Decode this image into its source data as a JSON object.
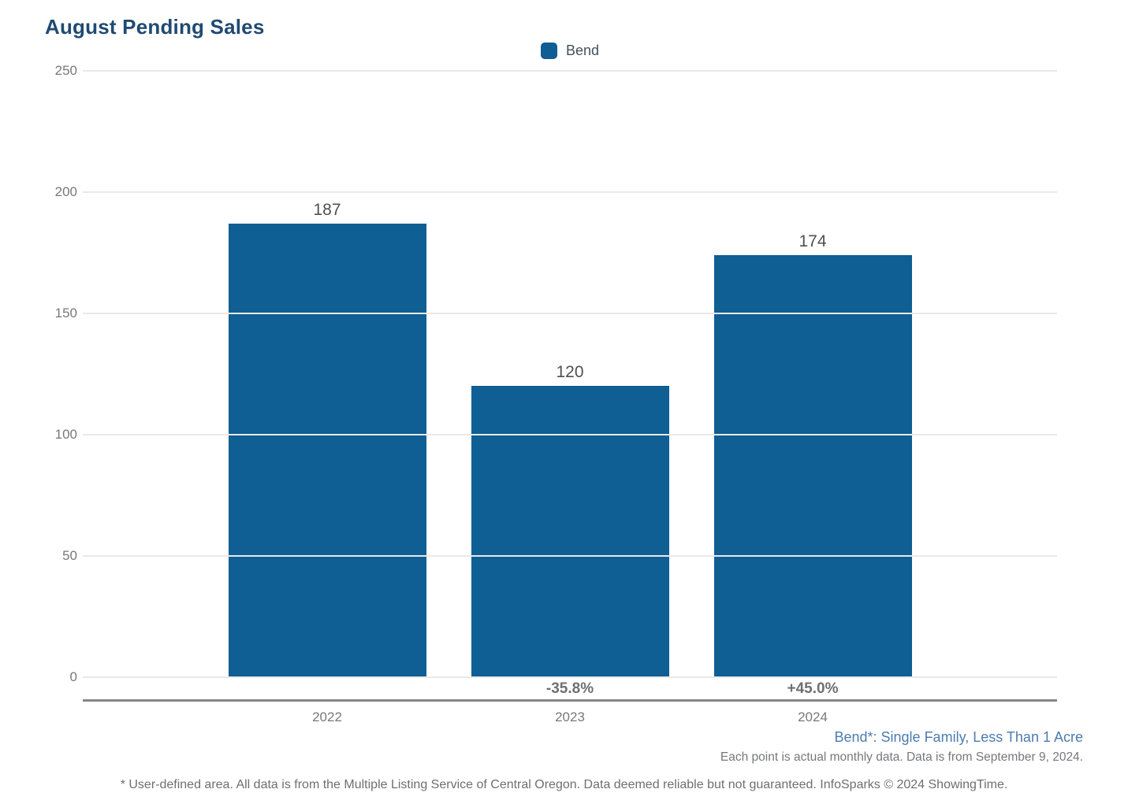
{
  "page": {
    "title": "August Pending Sales",
    "annotation_line1": "Bend*: Single Family, Less Than 1 Acre",
    "annotation_line2": "Each point is actual monthly data. Data is from September 9, 2024.",
    "footnote": "* User-defined area. All data is from the Multiple Listing Service of Central Oregon. Data deemed reliable but not guaranteed. InfoSparks © 2024 ShowingTime."
  },
  "colors": {
    "bar": "#0F5E94",
    "title": "#1F4A72",
    "annotation_blue": "#4C7CB0",
    "text_gray": "#77787A",
    "value_label_gray": "#4F5052",
    "gridline": "#E9E9E9",
    "axis_line": "#858585"
  },
  "legend": {
    "items": [
      {
        "label": "Bend",
        "color": "#0F5E94"
      }
    ]
  },
  "chart_data": {
    "type": "bar",
    "title": "August Pending Sales",
    "categories": [
      "2022",
      "2023",
      "2024"
    ],
    "series": [
      {
        "name": "Bend",
        "values": [
          187,
          120,
          174
        ]
      }
    ],
    "value_labels": [
      "187",
      "120",
      "174"
    ],
    "change_labels": [
      "",
      "-35.8%",
      "+45.0%"
    ],
    "yticks": [
      0,
      50,
      100,
      150,
      200,
      250
    ],
    "ylim": [
      0,
      250
    ],
    "xlabel": "",
    "ylabel": "",
    "grid": "horizontal",
    "legend_position": "top-center",
    "bar_color": "#0F5E94"
  }
}
